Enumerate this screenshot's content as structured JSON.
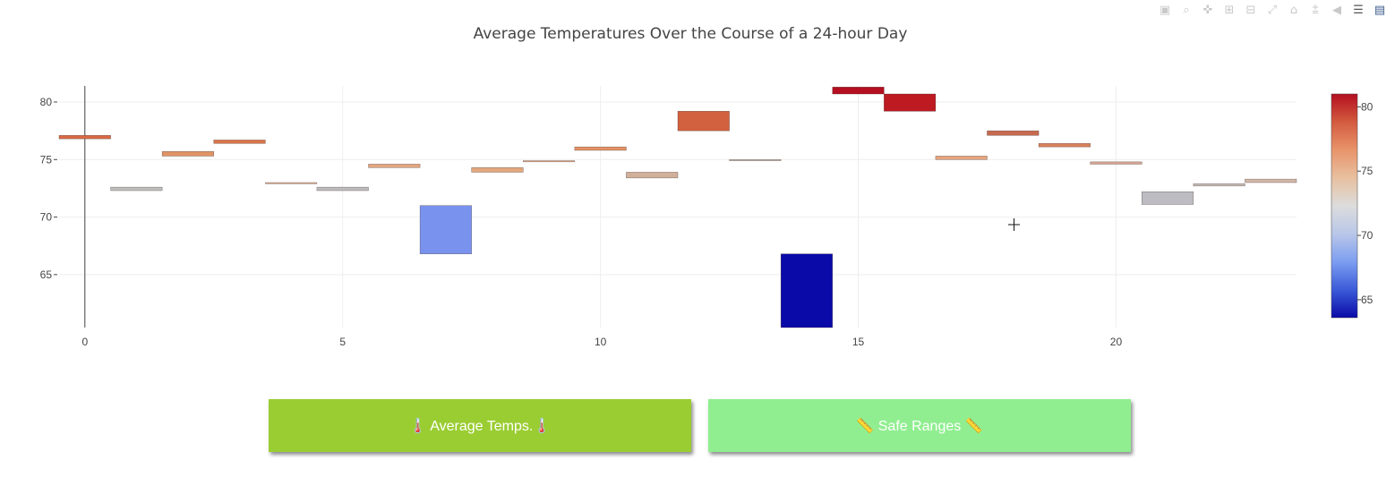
{
  "modebar": {
    "icons": [
      "camera-icon",
      "zoom-icon",
      "pan-icon",
      "zoom-in-icon",
      "zoom-out-icon",
      "autoscale-icon",
      "home-icon",
      "spike-lines-icon",
      "hover-closest-icon",
      "hover-compare-icon",
      "plotly-logo-icon"
    ]
  },
  "chart_data": {
    "type": "bar",
    "title": "Average Temperatures Over the Course of a 24-hour Day",
    "xlabel": "",
    "ylabel": "",
    "x_ticks": [
      0,
      5,
      10,
      15,
      20
    ],
    "y_ticks": [
      65,
      70,
      75,
      80
    ],
    "xlim": [
      -0.5,
      23.5
    ],
    "ylim": [
      60.4,
      81.4
    ],
    "grid": true,
    "description_of_marks": "floating bars: each hour has a base and top value in °F",
    "bars": [
      {
        "x": 0,
        "base": 76.8,
        "top": 77.1
      },
      {
        "x": 1,
        "base": 72.3,
        "top": 72.6
      },
      {
        "x": 2,
        "base": 75.3,
        "top": 75.7
      },
      {
        "x": 3,
        "base": 76.4,
        "top": 76.7
      },
      {
        "x": 4,
        "base": 72.9,
        "top": 73.0
      },
      {
        "x": 5,
        "base": 72.3,
        "top": 72.6
      },
      {
        "x": 6,
        "base": 74.3,
        "top": 74.6
      },
      {
        "x": 7,
        "base": 66.8,
        "top": 71.0
      },
      {
        "x": 8,
        "base": 73.9,
        "top": 74.3
      },
      {
        "x": 9,
        "base": 74.8,
        "top": 74.9
      },
      {
        "x": 10,
        "base": 75.8,
        "top": 76.1
      },
      {
        "x": 11,
        "base": 73.4,
        "top": 73.9
      },
      {
        "x": 12,
        "base": 77.5,
        "top": 79.2
      },
      {
        "x": 13,
        "base": 74.9,
        "top": 75.0
      },
      {
        "x": 14,
        "base": 60.4,
        "top": 66.8
      },
      {
        "x": 15,
        "base": 80.7,
        "top": 81.3
      },
      {
        "x": 16,
        "base": 79.2,
        "top": 80.7
      },
      {
        "x": 17,
        "base": 75.0,
        "top": 75.3
      },
      {
        "x": 18,
        "base": 77.1,
        "top": 77.5
      },
      {
        "x": 19,
        "base": 76.1,
        "top": 76.4
      },
      {
        "x": 20,
        "base": 74.6,
        "top": 74.8
      },
      {
        "x": 21,
        "base": 71.1,
        "top": 72.2
      },
      {
        "x": 22,
        "base": 72.7,
        "top": 72.9
      },
      {
        "x": 23,
        "base": 73.0,
        "top": 73.3
      }
    ],
    "colorbar": {
      "ticks": [
        65,
        70,
        75,
        80
      ],
      "range": [
        63.6,
        81.0
      ],
      "colorscale": [
        "#0a0aa8",
        "#3b5bd8",
        "#7c9df0",
        "#b9c7e8",
        "#dcdcdc",
        "#e8c0a0",
        "#e8946a",
        "#d35b3f",
        "#b40f20"
      ]
    },
    "bar_colors": [
      "#d96a45",
      "#bebebe",
      "#e09465",
      "#da7447",
      "#e0ab8c",
      "#bdbdbd",
      "#e4a67e",
      "#7892ee",
      "#e2a77d",
      "#e5ab84",
      "#e39265",
      "#d0b09a",
      "#d2613f",
      "#c8b8ac",
      "#0a0aa8",
      "#b40f20",
      "#bd1a22",
      "#e6a57c",
      "#c66a4f",
      "#d9825b",
      "#d7a693",
      "#bcbcc2",
      "#c7bdb5",
      "#d2b8a8"
    ]
  },
  "buttons": {
    "average_label": "🌡️ Average Temps.🌡️",
    "safe_label": "📏 Safe Ranges 📏"
  }
}
